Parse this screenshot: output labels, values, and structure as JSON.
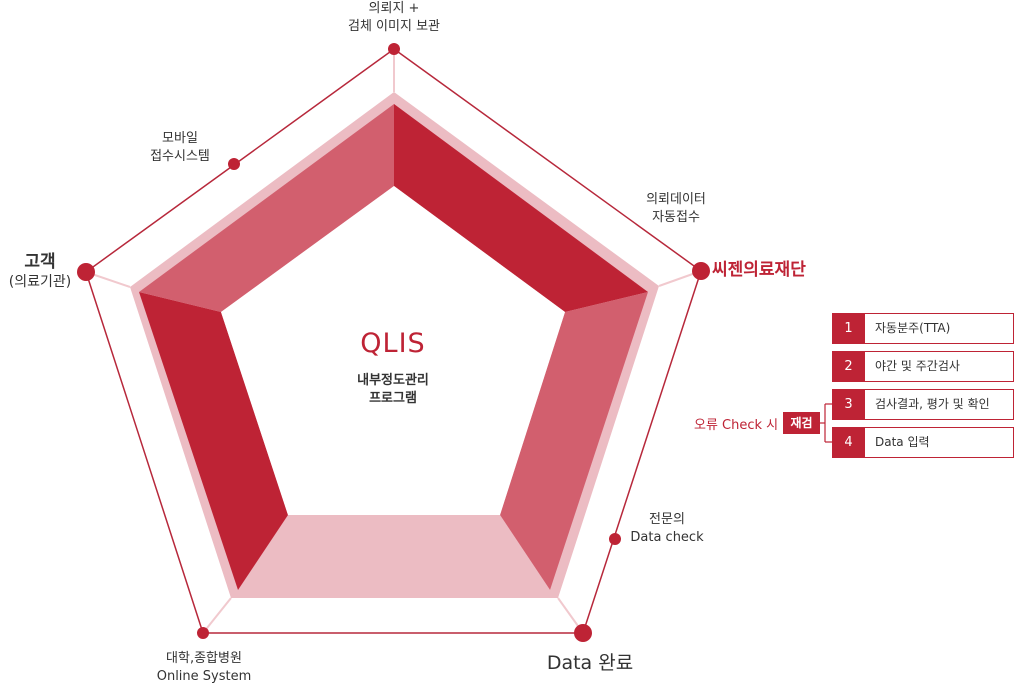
{
  "center": {
    "title": "QLIS",
    "subtitle_1": "내부정도관리",
    "subtitle_2": "프로그램"
  },
  "nodes": {
    "top_1": "의뢰지 +",
    "top_2": "검체 이미지 보관",
    "upper_left_1": "모바일",
    "upper_left_2": "접수시스템",
    "upper_right_1": "의뢰데이터",
    "upper_right_2": "자동접수",
    "left_1": "고객",
    "left_2": "(의료기관)",
    "right": "씨젠의료재단",
    "lower_right_1": "전문의",
    "lower_right_2": "Data check",
    "bottom_left_1": "대학,종합병원",
    "bottom_left_2": "Online System",
    "bottom_right": "Data 완료"
  },
  "steps": [
    {
      "num": "1",
      "label": "자동분주(TTA)"
    },
    {
      "num": "2",
      "label": "야간 및 주간검사"
    },
    {
      "num": "3",
      "label": "검사결과, 평가 및 확인"
    },
    {
      "num": "4",
      "label": "Data 입력"
    }
  ],
  "recheck": {
    "label": "오류 Check 시",
    "badge": "재검"
  },
  "colors": {
    "accent": "#be2335",
    "mid": "#d25f6e",
    "light": "#ecbcc3",
    "outline": "#b7283b"
  }
}
